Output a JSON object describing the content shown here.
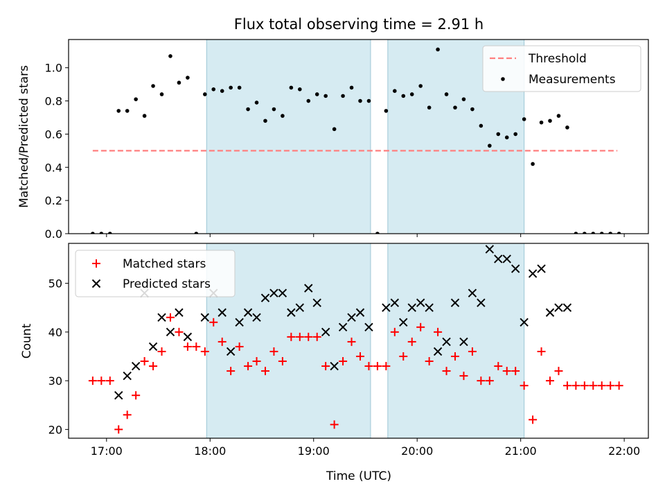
{
  "chart_data": [
    {
      "type": "scatter",
      "title": "Flux total observing time = 2.91 h",
      "ylabel": "Matched/Predicted stars",
      "xlabel": "",
      "xlim": [
        "16:38",
        "22:14"
      ],
      "ylim": [
        0,
        1.17
      ],
      "x_ticks": [
        "17:00",
        "18:00",
        "19:00",
        "20:00",
        "21:00",
        "22:00"
      ],
      "y_ticks": [
        "0.0",
        "0.2",
        "0.4",
        "0.6",
        "0.8",
        "1.0"
      ],
      "shaded_spans": [
        [
          "17:58",
          "19:33"
        ],
        [
          "19:43",
          "21:02"
        ]
      ],
      "threshold": {
        "name": "Threshold",
        "y": 0.5,
        "x_range": [
          "16:52",
          "21:56"
        ],
        "color": "#ff7f7f"
      },
      "legend": {
        "position": "top-right",
        "entries": [
          "Threshold",
          "Measurements"
        ]
      },
      "series": [
        {
          "name": "Measurements",
          "color": "#000000",
          "marker": "dot",
          "points": [
            [
              "16:52",
              0.0
            ],
            [
              "16:57",
              0.0
            ],
            [
              "17:02",
              0.0
            ],
            [
              "17:07",
              0.74
            ],
            [
              "17:12",
              0.74
            ],
            [
              "17:17",
              0.81
            ],
            [
              "17:22",
              0.71
            ],
            [
              "17:27",
              0.89
            ],
            [
              "17:32",
              0.84
            ],
            [
              "17:37",
              1.07
            ],
            [
              "17:42",
              0.91
            ],
            [
              "17:47",
              0.94
            ],
            [
              "17:52",
              0.0
            ],
            [
              "17:57",
              0.84
            ],
            [
              "18:02",
              0.87
            ],
            [
              "18:07",
              0.86
            ],
            [
              "18:12",
              0.88
            ],
            [
              "18:17",
              0.88
            ],
            [
              "18:22",
              0.75
            ],
            [
              "18:27",
              0.79
            ],
            [
              "18:32",
              0.68
            ],
            [
              "18:37",
              0.75
            ],
            [
              "18:42",
              0.71
            ],
            [
              "18:47",
              0.88
            ],
            [
              "18:52",
              0.87
            ],
            [
              "18:57",
              0.8
            ],
            [
              "19:02",
              0.84
            ],
            [
              "19:07",
              0.83
            ],
            [
              "19:12",
              0.63
            ],
            [
              "19:17",
              0.83
            ],
            [
              "19:22",
              0.88
            ],
            [
              "19:27",
              0.8
            ],
            [
              "19:32",
              0.8
            ],
            [
              "19:37",
              0.0
            ],
            [
              "19:42",
              0.74
            ],
            [
              "19:47",
              0.86
            ],
            [
              "19:52",
              0.83
            ],
            [
              "19:57",
              0.84
            ],
            [
              "20:02",
              0.89
            ],
            [
              "20:07",
              0.76
            ],
            [
              "20:12",
              1.11
            ],
            [
              "20:17",
              0.84
            ],
            [
              "20:22",
              0.76
            ],
            [
              "20:27",
              0.81
            ],
            [
              "20:32",
              0.75
            ],
            [
              "20:37",
              0.65
            ],
            [
              "20:42",
              0.53
            ],
            [
              "20:47",
              0.6
            ],
            [
              "20:52",
              0.58
            ],
            [
              "20:57",
              0.6
            ],
            [
              "21:02",
              0.69
            ],
            [
              "21:07",
              0.42
            ],
            [
              "21:12",
              0.67
            ],
            [
              "21:17",
              0.68
            ],
            [
              "21:22",
              0.71
            ],
            [
              "21:27",
              0.64
            ],
            [
              "21:32",
              0.0
            ],
            [
              "21:37",
              0.0
            ],
            [
              "21:42",
              0.0
            ],
            [
              "21:47",
              0.0
            ],
            [
              "21:52",
              0.0
            ],
            [
              "21:57",
              0.0
            ]
          ]
        }
      ]
    },
    {
      "type": "scatter",
      "title": "",
      "ylabel": "Count",
      "xlabel": "Time (UTC)",
      "xlim": [
        "16:38",
        "22:14"
      ],
      "ylim": [
        18.2,
        58.2
      ],
      "x_ticks": [
        "17:00",
        "18:00",
        "19:00",
        "20:00",
        "21:00",
        "22:00"
      ],
      "y_ticks": [
        "20",
        "30",
        "40",
        "50"
      ],
      "shaded_spans": [
        [
          "17:58",
          "19:33"
        ],
        [
          "19:43",
          "21:02"
        ]
      ],
      "legend": {
        "position": "top-left",
        "entries": [
          "Matched stars",
          "Predicted stars"
        ]
      },
      "series": [
        {
          "name": "Matched stars",
          "color": "#ff0000",
          "marker": "plus",
          "points": [
            [
              "16:52",
              30
            ],
            [
              "16:57",
              30
            ],
            [
              "17:02",
              30
            ],
            [
              "17:07",
              20
            ],
            [
              "17:12",
              23
            ],
            [
              "17:17",
              27
            ],
            [
              "17:22",
              34
            ],
            [
              "17:27",
              33
            ],
            [
              "17:32",
              36
            ],
            [
              "17:37",
              43
            ],
            [
              "17:42",
              40
            ],
            [
              "17:47",
              37
            ],
            [
              "17:52",
              37
            ],
            [
              "17:57",
              36
            ],
            [
              "18:02",
              42
            ],
            [
              "18:07",
              38
            ],
            [
              "18:12",
              32
            ],
            [
              "18:17",
              37
            ],
            [
              "18:22",
              33
            ],
            [
              "18:27",
              34
            ],
            [
              "18:32",
              32
            ],
            [
              "18:37",
              36
            ],
            [
              "18:42",
              34
            ],
            [
              "18:47",
              39
            ],
            [
              "18:52",
              39
            ],
            [
              "18:57",
              39
            ],
            [
              "19:02",
              39
            ],
            [
              "19:07",
              33
            ],
            [
              "19:12",
              21
            ],
            [
              "19:17",
              34
            ],
            [
              "19:22",
              38
            ],
            [
              "19:27",
              35
            ],
            [
              "19:32",
              33
            ],
            [
              "19:37",
              33
            ],
            [
              "19:42",
              33
            ],
            [
              "19:47",
              40
            ],
            [
              "19:52",
              35
            ],
            [
              "19:57",
              38
            ],
            [
              "20:02",
              41
            ],
            [
              "20:07",
              34
            ],
            [
              "20:12",
              40
            ],
            [
              "20:17",
              32
            ],
            [
              "20:22",
              35
            ],
            [
              "20:27",
              31
            ],
            [
              "20:32",
              36
            ],
            [
              "20:37",
              30
            ],
            [
              "20:42",
              30
            ],
            [
              "20:47",
              33
            ],
            [
              "20:52",
              32
            ],
            [
              "20:57",
              32
            ],
            [
              "21:02",
              29
            ],
            [
              "21:07",
              22
            ],
            [
              "21:12",
              36
            ],
            [
              "21:17",
              30
            ],
            [
              "21:22",
              32
            ],
            [
              "21:27",
              29
            ],
            [
              "21:32",
              29
            ],
            [
              "21:37",
              29
            ],
            [
              "21:42",
              29
            ],
            [
              "21:47",
              29
            ],
            [
              "21:52",
              29
            ],
            [
              "21:57",
              29
            ]
          ]
        },
        {
          "name": "Predicted stars",
          "color": "#000000",
          "marker": "x",
          "points": [
            [
              "17:07",
              27
            ],
            [
              "17:12",
              31
            ],
            [
              "17:17",
              33
            ],
            [
              "17:22",
              48
            ],
            [
              "17:27",
              37
            ],
            [
              "17:32",
              43
            ],
            [
              "17:37",
              40
            ],
            [
              "17:42",
              44
            ],
            [
              "17:47",
              39
            ],
            [
              "17:57",
              43
            ],
            [
              "18:02",
              48
            ],
            [
              "18:07",
              44
            ],
            [
              "18:12",
              36
            ],
            [
              "18:17",
              42
            ],
            [
              "18:22",
              44
            ],
            [
              "18:27",
              43
            ],
            [
              "18:32",
              47
            ],
            [
              "18:37",
              48
            ],
            [
              "18:42",
              48
            ],
            [
              "18:47",
              44
            ],
            [
              "18:52",
              45
            ],
            [
              "18:57",
              49
            ],
            [
              "19:02",
              46
            ],
            [
              "19:07",
              40
            ],
            [
              "19:12",
              33
            ],
            [
              "19:17",
              41
            ],
            [
              "19:22",
              43
            ],
            [
              "19:27",
              44
            ],
            [
              "19:32",
              41
            ],
            [
              "19:42",
              45
            ],
            [
              "19:47",
              46
            ],
            [
              "19:52",
              42
            ],
            [
              "19:57",
              45
            ],
            [
              "20:02",
              46
            ],
            [
              "20:07",
              45
            ],
            [
              "20:12",
              36
            ],
            [
              "20:17",
              38
            ],
            [
              "20:22",
              46
            ],
            [
              "20:27",
              38
            ],
            [
              "20:32",
              48
            ],
            [
              "20:37",
              46
            ],
            [
              "20:42",
              57
            ],
            [
              "20:47",
              55
            ],
            [
              "20:52",
              55
            ],
            [
              "20:57",
              53
            ],
            [
              "21:02",
              42
            ],
            [
              "21:07",
              52
            ],
            [
              "21:12",
              53
            ],
            [
              "21:17",
              44
            ],
            [
              "21:22",
              45
            ],
            [
              "21:27",
              45
            ]
          ]
        }
      ]
    }
  ]
}
